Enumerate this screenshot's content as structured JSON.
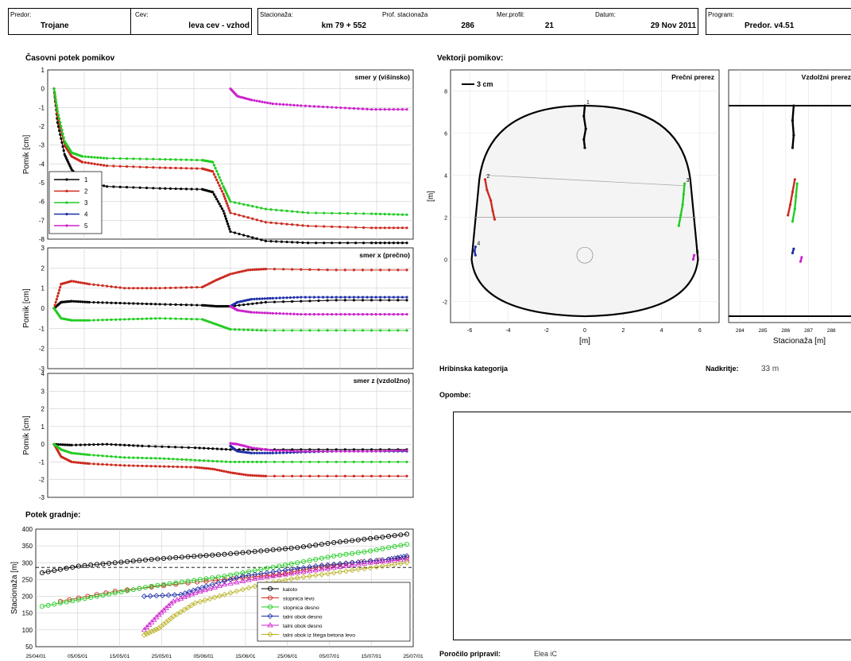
{
  "header": {
    "predor_label": "Predor:",
    "predor_value": "Trojane",
    "cev_label": "Cev:",
    "cev_value": "leva cev - vzhod",
    "stac_label": "Stacionaža:",
    "stac_value": "km 79 + 552",
    "prof_label": "Prof. stacionaža",
    "prof_value": "286",
    "merp_label": "Mer.profil:",
    "merp_value": "21",
    "datum_label": "Datum:",
    "datum_value": "29 Nov 2011",
    "program_label": "Program:",
    "program_value": "Predor. v4.51"
  },
  "left_title": "Časovni potek pomikov",
  "vectors_title": "Vektorji pomikov:",
  "progress_title": "Potek gradnje:",
  "geology_label": "Hribinska kategorija",
  "overburden_label": "Nadkritje:",
  "overburden_value": "33 m",
  "notes_label": "Opombe:",
  "report_label": "Poročilo pripravil:",
  "report_value": "Elea iC",
  "colors": {
    "s1": "#000000",
    "s2": "#cc2a1f",
    "s3": "#22cc22",
    "s4": "#1f2fa8",
    "s5": "#cc22cc",
    "s6": "#b8b020"
  },
  "chart_data": [
    {
      "type": "line",
      "title": "smer y (višinsko)",
      "ylabel": "Pomik [cm]",
      "ylim": [
        -8,
        1
      ],
      "yticks": [
        "1",
        "0",
        "-1",
        "-2",
        "-3",
        "-4",
        "-5",
        "-6",
        "-7",
        "-8"
      ],
      "grid": true,
      "legend": [
        "1",
        "2",
        "3",
        "4",
        "5"
      ],
      "series": [
        {
          "name": "1",
          "x": [
            0,
            0.01,
            0.03,
            0.05,
            0.08,
            0.15,
            0.3,
            0.42,
            0.45,
            0.48,
            0.5,
            0.6,
            0.72,
            0.9,
            1.0
          ],
          "y": [
            0,
            -1.8,
            -3.5,
            -4.3,
            -4.9,
            -5.2,
            -5.3,
            -5.35,
            -5.5,
            -6.5,
            -7.6,
            -8.1,
            -8.2,
            -8.2,
            -8.2
          ]
        },
        {
          "name": "2",
          "x": [
            0,
            0.01,
            0.03,
            0.05,
            0.08,
            0.15,
            0.3,
            0.42,
            0.45,
            0.48,
            0.5,
            0.6,
            0.72,
            0.9,
            1.0
          ],
          "y": [
            0,
            -1.5,
            -3.0,
            -3.6,
            -3.9,
            -4.1,
            -4.2,
            -4.25,
            -4.4,
            -5.6,
            -6.6,
            -7.1,
            -7.3,
            -7.4,
            -7.4
          ]
        },
        {
          "name": "3",
          "x": [
            0,
            0.01,
            0.03,
            0.05,
            0.08,
            0.15,
            0.3,
            0.42,
            0.45,
            0.48,
            0.5,
            0.6,
            0.72,
            0.9,
            1.0
          ],
          "y": [
            0,
            -1.2,
            -2.8,
            -3.4,
            -3.6,
            -3.7,
            -3.75,
            -3.8,
            -3.9,
            -5.2,
            -6.0,
            -6.4,
            -6.6,
            -6.65,
            -6.7
          ]
        },
        {
          "name": "5",
          "x": [
            0.5,
            0.52,
            0.56,
            0.62,
            0.7,
            0.8,
            0.9,
            1.0
          ],
          "y": [
            0,
            -0.4,
            -0.6,
            -0.8,
            -0.9,
            -1.0,
            -1.1,
            -1.1
          ]
        }
      ]
    },
    {
      "type": "line",
      "title": "smer x (prečno)",
      "ylabel": "Pomik [cm]",
      "ylim": [
        -3,
        3
      ],
      "yticks": [
        "3",
        "2",
        "1",
        "0",
        "-1",
        "-2",
        "-3"
      ],
      "grid": true,
      "series": [
        {
          "name": "1",
          "x": [
            0,
            0.02,
            0.05,
            0.1,
            0.2,
            0.3,
            0.42,
            0.46,
            0.5,
            0.6,
            0.8,
            1.0
          ],
          "y": [
            0,
            0.3,
            0.35,
            0.3,
            0.25,
            0.2,
            0.15,
            0.1,
            0.1,
            0.3,
            0.4,
            0.4
          ]
        },
        {
          "name": "2",
          "x": [
            0,
            0.02,
            0.05,
            0.1,
            0.2,
            0.3,
            0.42,
            0.46,
            0.5,
            0.55,
            0.6,
            0.8,
            1.0
          ],
          "y": [
            0,
            1.2,
            1.35,
            1.2,
            1.0,
            1.0,
            1.05,
            1.4,
            1.7,
            1.9,
            1.95,
            1.9,
            1.9
          ]
        },
        {
          "name": "3",
          "x": [
            0,
            0.02,
            0.05,
            0.1,
            0.2,
            0.3,
            0.42,
            0.46,
            0.5,
            0.6,
            0.8,
            1.0
          ],
          "y": [
            0,
            -0.5,
            -0.6,
            -0.6,
            -0.55,
            -0.5,
            -0.55,
            -0.8,
            -1.05,
            -1.1,
            -1.1,
            -1.1
          ]
        },
        {
          "name": "4",
          "x": [
            0.5,
            0.52,
            0.56,
            0.62,
            0.7,
            0.8,
            0.9,
            1.0
          ],
          "y": [
            0.1,
            0.3,
            0.45,
            0.5,
            0.55,
            0.55,
            0.55,
            0.55
          ]
        },
        {
          "name": "5",
          "x": [
            0.5,
            0.52,
            0.56,
            0.62,
            0.7,
            0.8,
            0.9,
            1.0
          ],
          "y": [
            0.1,
            -0.1,
            -0.2,
            -0.25,
            -0.3,
            -0.3,
            -0.3,
            -0.3
          ]
        }
      ]
    },
    {
      "type": "line",
      "title": "smer z (vzdolžno)",
      "ylabel": "Pomik [cm]",
      "ylim": [
        -3,
        4
      ],
      "yticks": [
        "4",
        "3",
        "2",
        "1",
        "0",
        "-1",
        "-2",
        "-3"
      ],
      "grid": true,
      "series": [
        {
          "name": "1",
          "x": [
            0,
            0.05,
            0.15,
            0.25,
            0.4,
            0.5,
            0.6,
            0.8,
            1.0
          ],
          "y": [
            0,
            -0.05,
            0,
            -0.1,
            -0.2,
            -0.3,
            -0.3,
            -0.3,
            -0.3
          ]
        },
        {
          "name": "2",
          "x": [
            0,
            0.02,
            0.05,
            0.1,
            0.2,
            0.3,
            0.4,
            0.45,
            0.5,
            0.55,
            0.6,
            0.8,
            1.0
          ],
          "y": [
            0,
            -0.7,
            -1.0,
            -1.1,
            -1.2,
            -1.25,
            -1.3,
            -1.4,
            -1.6,
            -1.75,
            -1.8,
            -1.8,
            -1.8
          ]
        },
        {
          "name": "3",
          "x": [
            0,
            0.02,
            0.05,
            0.1,
            0.2,
            0.3,
            0.4,
            0.5,
            0.6,
            0.8,
            1.0
          ],
          "y": [
            0,
            -0.3,
            -0.5,
            -0.6,
            -0.75,
            -0.8,
            -0.9,
            -1.0,
            -1.0,
            -1.0,
            -1.0
          ]
        },
        {
          "name": "4",
          "x": [
            0.5,
            0.52,
            0.56,
            0.62,
            0.7,
            0.8,
            0.9,
            1.0
          ],
          "y": [
            -0.1,
            -0.4,
            -0.5,
            -0.5,
            -0.45,
            -0.4,
            -0.4,
            -0.4
          ]
        },
        {
          "name": "5",
          "x": [
            0.5,
            0.52,
            0.56,
            0.62,
            0.7,
            0.8,
            0.9,
            1.0
          ],
          "y": [
            0.05,
            0,
            -0.2,
            -0.35,
            -0.4,
            -0.4,
            -0.4,
            -0.35
          ]
        }
      ]
    },
    {
      "type": "line",
      "ylabel": "Stacionaža [m]",
      "ylim": [
        50,
        400
      ],
      "yticks": [
        "400",
        "350",
        "300",
        "250",
        "200",
        "150",
        "100",
        "50"
      ],
      "xticks": [
        "25/04/01",
        "05/05/01",
        "15/05/01",
        "25/05/01",
        "05/06/01",
        "15/06/01",
        "25/06/01",
        "05/07/01",
        "15/07/01",
        "25/07/01"
      ],
      "reference_line": 286,
      "grid": true,
      "legend": [
        "kaloto",
        "stopnica levo",
        "stopnica desno",
        "talni obok desno",
        "talni obok desno",
        "talni obok iz litega betona levo"
      ],
      "series": [
        {
          "name": "kaloto",
          "x": [
            0,
            0.1,
            0.2,
            0.3,
            0.4,
            0.5,
            0.6,
            0.7,
            0.8,
            0.9,
            1.0
          ],
          "y": [
            270,
            290,
            300,
            310,
            318,
            325,
            335,
            345,
            360,
            372,
            385
          ]
        },
        {
          "name": "stopnica levo",
          "x": [
            0.05,
            0.2,
            0.4,
            0.55,
            0.65,
            0.75,
            0.85,
            1.0
          ],
          "y": [
            185,
            215,
            240,
            255,
            265,
            285,
            300,
            315
          ]
        },
        {
          "name": "stopnica desno",
          "x": [
            0,
            0.1,
            0.2,
            0.3,
            0.4,
            0.5,
            0.6,
            0.7,
            0.8,
            0.9,
            1.0
          ],
          "y": [
            170,
            190,
            210,
            230,
            245,
            260,
            280,
            300,
            320,
            335,
            355
          ]
        },
        {
          "name": "talni obok desno",
          "x": [
            0.28,
            0.38,
            0.45,
            0.55,
            0.65,
            0.75,
            0.85,
            0.95,
            1.0
          ],
          "y": [
            200,
            205,
            230,
            260,
            275,
            290,
            300,
            310,
            320
          ]
        },
        {
          "name": "talni obok desno",
          "x": [
            0.28,
            0.32,
            0.36,
            0.42,
            0.5,
            0.6,
            0.7,
            0.8,
            0.9,
            1.0
          ],
          "y": [
            100,
            145,
            185,
            210,
            235,
            255,
            270,
            285,
            300,
            310
          ]
        },
        {
          "name": "talni obok iz litega betona levo",
          "x": [
            0.28,
            0.32,
            0.36,
            0.42,
            0.5,
            0.6,
            0.7,
            0.8,
            0.9,
            1.0
          ],
          "y": [
            85,
            105,
            140,
            180,
            205,
            235,
            255,
            270,
            285,
            300
          ]
        }
      ]
    },
    {
      "type": "scatter",
      "title": "Prečni prerez",
      "xlabel": "[m]",
      "ylabel": "[m]",
      "xlim": [
        -7,
        7
      ],
      "ylim": [
        -3,
        9
      ],
      "xticks": [
        "-6",
        "-4",
        "-2",
        "0",
        "2",
        "4",
        "6"
      ],
      "yticks": [
        "8",
        "6",
        "4",
        "2",
        "0",
        "-2"
      ],
      "scale_label": "3 cm",
      "vectors": [
        {
          "name": "1",
          "x": [
            0,
            -0.05,
            0.05,
            -0.05,
            0
          ],
          "y": [
            7.3,
            6.8,
            6.2,
            5.7,
            5.3
          ]
        },
        {
          "name": "2",
          "x": [
            -5.2,
            -5.1,
            -4.9,
            -4.8,
            -4.7
          ],
          "y": [
            3.8,
            3.3,
            2.8,
            2.3,
            1.9
          ]
        },
        {
          "name": "3",
          "x": [
            5.2,
            5.15,
            5.1,
            5.0,
            4.9
          ],
          "y": [
            3.6,
            3.1,
            2.6,
            2.1,
            1.6
          ]
        },
        {
          "name": "4",
          "x": [
            -5.7,
            -5.75,
            -5.7
          ],
          "y": [
            0.6,
            0.4,
            0.2
          ]
        },
        {
          "name": "5",
          "x": [
            5.7,
            5.65
          ],
          "y": [
            0.2,
            0
          ]
        }
      ]
    },
    {
      "type": "scatter",
      "title": "Vzdolžni prerez",
      "xlabel": "Stacionaža [m]",
      "xlim": [
        283.5,
        289
      ],
      "xticks": [
        "284",
        "285",
        "286",
        "287",
        "288"
      ],
      "vectors": [
        {
          "name": "1",
          "x": [
            286.35,
            286.3,
            286.35,
            286.3
          ],
          "y": [
            7.3,
            6.6,
            5.9,
            5.3
          ]
        },
        {
          "name": "2",
          "x": [
            286.4,
            286.3,
            286.2,
            286.1
          ],
          "y": [
            3.8,
            3.2,
            2.6,
            2.1
          ]
        },
        {
          "name": "3",
          "x": [
            286.5,
            286.45,
            286.4,
            286.3
          ],
          "y": [
            3.6,
            3.0,
            2.4,
            1.8
          ]
        },
        {
          "name": "4",
          "x": [
            286.35,
            286.3
          ],
          "y": [
            0.5,
            0.3
          ]
        },
        {
          "name": "5",
          "x": [
            286.7,
            286.65
          ],
          "y": [
            0.1,
            -0.1
          ]
        }
      ]
    }
  ]
}
